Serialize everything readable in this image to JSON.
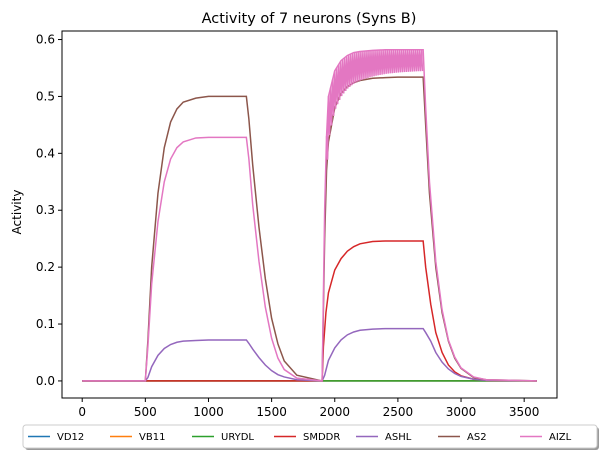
{
  "chart_data": {
    "type": "line",
    "title": "Activity of 7 neurons (Syns B)",
    "xlabel": "",
    "ylabel": "Activity",
    "xlim": [
      -160,
      3760
    ],
    "ylim": [
      -0.03,
      0.615
    ],
    "xticks": [
      0,
      500,
      1000,
      1500,
      2000,
      2500,
      3000,
      3500
    ],
    "yticks": [
      0.0,
      0.1,
      0.2,
      0.3,
      0.4,
      0.5,
      0.6
    ],
    "ytick_labels": [
      "0.0",
      "0.1",
      "0.2",
      "0.3",
      "0.4",
      "0.5",
      "0.6"
    ],
    "legend_position": "bottom, below axes",
    "grid": false,
    "series": [
      {
        "name": "VD12",
        "color": "#1f77b4",
        "x": [
          0,
          500,
          520,
          1300,
          1320,
          1900,
          1920,
          2700,
          2720,
          3600
        ],
        "y": [
          0,
          0,
          0,
          0,
          0,
          0,
          0,
          0,
          0,
          0
        ]
      },
      {
        "name": "VB11",
        "color": "#ff7f0e",
        "x": [
          0,
          500,
          1300,
          1900,
          2700,
          3600
        ],
        "y": [
          0,
          0,
          0,
          0,
          0,
          0
        ]
      },
      {
        "name": "URYDL",
        "color": "#2ca02c",
        "x": [
          0,
          500,
          1300,
          1900,
          2700,
          3600
        ],
        "y": [
          0,
          0,
          0,
          0,
          0,
          0
        ]
      },
      {
        "name": "SMDDR",
        "color": "#d62728",
        "x": [
          0,
          1900,
          1910,
          1930,
          1950,
          2000,
          2050,
          2100,
          2150,
          2200,
          2300,
          2400,
          2500,
          2600,
          2700,
          2720,
          2760,
          2800,
          2850,
          2900,
          2950,
          3000,
          3100,
          3200,
          3600
        ],
        "y": [
          0,
          0,
          0.06,
          0.12,
          0.155,
          0.195,
          0.215,
          0.228,
          0.236,
          0.241,
          0.245,
          0.246,
          0.246,
          0.246,
          0.246,
          0.2,
          0.135,
          0.085,
          0.05,
          0.028,
          0.016,
          0.009,
          0.003,
          0.001,
          0
        ]
      },
      {
        "name": "ASHL",
        "color": "#9467bd",
        "x": [
          0,
          500,
          520,
          550,
          600,
          650,
          700,
          750,
          800,
          900,
          1000,
          1100,
          1200,
          1300,
          1320,
          1350,
          1400,
          1450,
          1500,
          1550,
          1600,
          1700,
          1900,
          1920,
          1950,
          2000,
          2050,
          2100,
          2150,
          2200,
          2300,
          2400,
          2500,
          2600,
          2700,
          2720,
          2760,
          2800,
          2850,
          2900,
          2950,
          3000,
          3100,
          3200,
          3600
        ],
        "y": [
          0,
          0,
          0.006,
          0.025,
          0.045,
          0.057,
          0.064,
          0.068,
          0.07,
          0.071,
          0.072,
          0.072,
          0.072,
          0.072,
          0.066,
          0.056,
          0.041,
          0.028,
          0.018,
          0.011,
          0.007,
          0.002,
          0,
          0.01,
          0.036,
          0.058,
          0.072,
          0.081,
          0.086,
          0.089,
          0.091,
          0.092,
          0.092,
          0.092,
          0.092,
          0.085,
          0.07,
          0.05,
          0.033,
          0.021,
          0.013,
          0.008,
          0.003,
          0.001,
          0
        ]
      },
      {
        "name": "AS2",
        "color": "#8c564b",
        "x": [
          0,
          500,
          520,
          550,
          600,
          650,
          700,
          750,
          800,
          900,
          1000,
          1100,
          1200,
          1300,
          1320,
          1350,
          1400,
          1450,
          1500,
          1550,
          1600,
          1700,
          1900,
          1920,
          1935,
          1950,
          2000,
          2050,
          2100,
          2150,
          2200,
          2300,
          2400,
          2500,
          2600,
          2700,
          2720,
          2750,
          2800,
          2850,
          2900,
          2950,
          3000,
          3100,
          3200,
          3600
        ],
        "y": [
          0,
          0,
          0.07,
          0.2,
          0.33,
          0.41,
          0.455,
          0.478,
          0.49,
          0.497,
          0.5,
          0.5,
          0.5,
          0.5,
          0.46,
          0.38,
          0.27,
          0.18,
          0.11,
          0.065,
          0.035,
          0.01,
          0,
          0.25,
          0.37,
          0.42,
          0.48,
          0.505,
          0.517,
          0.524,
          0.528,
          0.532,
          0.533,
          0.534,
          0.534,
          0.534,
          0.45,
          0.33,
          0.2,
          0.12,
          0.07,
          0.04,
          0.022,
          0.006,
          0.002,
          0
        ]
      },
      {
        "name": "AIZL",
        "color": "#e377c2",
        "x": [
          0,
          500,
          520,
          550,
          600,
          650,
          700,
          750,
          800,
          900,
          1000,
          1100,
          1200,
          1300,
          1320,
          1350,
          1400,
          1450,
          1500,
          1550,
          1600,
          1700,
          1900,
          1920,
          1935,
          1950,
          2000,
          2050,
          2100,
          2150,
          2200,
          2300,
          2400,
          2500,
          2600,
          2700,
          2720,
          2750,
          2800,
          2850,
          2900,
          2950,
          3000,
          3100,
          3200,
          3600
        ],
        "y": [
          0,
          0,
          0.06,
          0.17,
          0.28,
          0.35,
          0.39,
          0.41,
          0.42,
          0.427,
          0.428,
          0.428,
          0.428,
          0.428,
          0.39,
          0.31,
          0.21,
          0.13,
          0.075,
          0.04,
          0.02,
          0.005,
          0,
          0.3,
          0.43,
          0.5,
          0.545,
          0.563,
          0.572,
          0.577,
          0.579,
          0.581,
          0.582,
          0.582,
          0.582,
          0.582,
          0.48,
          0.35,
          0.21,
          0.125,
          0.072,
          0.042,
          0.023,
          0.007,
          0.002,
          0
        ]
      }
    ]
  }
}
